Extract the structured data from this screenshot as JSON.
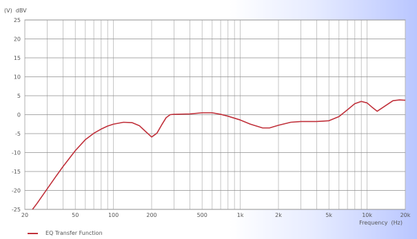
{
  "chart_data": {
    "type": "line",
    "y_unit_label": "(V)  dBV",
    "xlabel": "Frequency  (Hz)",
    "x_scale": "log",
    "xlim": [
      20,
      20000
    ],
    "ylim": [
      -25,
      25
    ],
    "grid": true,
    "y_ticks": [
      25,
      20,
      15,
      10,
      5,
      0,
      -5,
      -10,
      -15,
      -20,
      -25
    ],
    "y_tick_labels": [
      "25",
      "20",
      "15",
      "10",
      "5",
      "0",
      "-5",
      "-10",
      "-15",
      "-20",
      "-25"
    ],
    "x_ticks": [
      20,
      50,
      100,
      200,
      500,
      1000,
      2000,
      5000,
      10000,
      20000
    ],
    "x_tick_labels": [
      "20",
      "50",
      "100",
      "200",
      "500",
      "1k",
      "2k",
      "5k",
      "10k",
      "20k"
    ],
    "legend_position": "bottom-left",
    "colors": {
      "series": "#c0303a",
      "grid": "#b8b8b8",
      "frame": "#999999"
    },
    "series": [
      {
        "name": "EQ Transfer Function",
        "x": [
          23,
          25,
          30,
          35,
          40,
          50,
          60,
          70,
          80,
          90,
          100,
          120,
          140,
          160,
          180,
          200,
          220,
          240,
          260,
          280,
          300,
          400,
          500,
          600,
          700,
          800,
          1000,
          1200,
          1500,
          1700,
          2000,
          2500,
          3000,
          4000,
          5000,
          6000,
          7000,
          8000,
          9000,
          10000,
          11000,
          12000,
          14000,
          16000,
          18000,
          20000
        ],
        "y": [
          -25,
          -23.4,
          -19.6,
          -16.4,
          -13.7,
          -9.5,
          -6.6,
          -4.9,
          -3.8,
          -3.0,
          -2.5,
          -2.0,
          -2.1,
          -2.9,
          -4.5,
          -5.9,
          -4.9,
          -2.7,
          -0.8,
          0,
          0.1,
          0.2,
          0.5,
          0.5,
          0.1,
          -0.4,
          -1.4,
          -2.5,
          -3.5,
          -3.5,
          -2.8,
          -2.0,
          -1.8,
          -1.8,
          -1.6,
          -0.5,
          1.3,
          2.9,
          3.5,
          3.1,
          1.9,
          0.9,
          2.4,
          3.7,
          3.9,
          3.8
        ]
      }
    ]
  }
}
